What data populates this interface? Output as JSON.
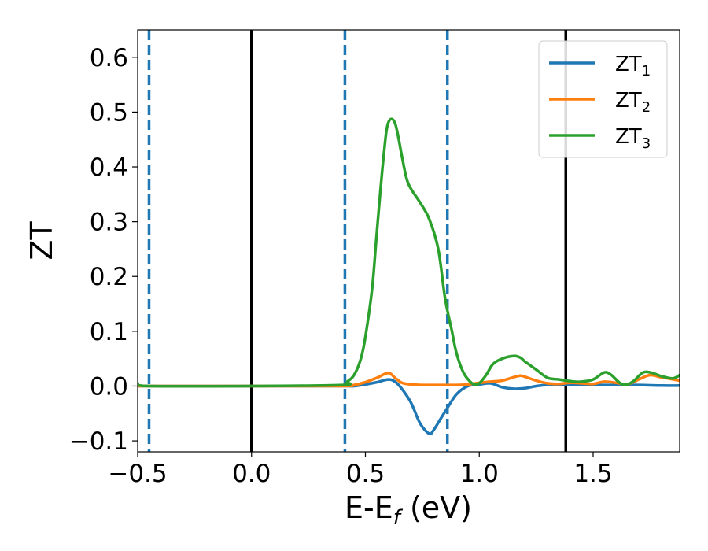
{
  "chart_data": {
    "type": "line",
    "title": "",
    "xlabel": "E-E",
    "xlabel_sub": "f",
    "xlabel_unit": " (eV)",
    "ylabel": "ZT",
    "xlim": [
      -0.5,
      1.88
    ],
    "ylim": [
      -0.12,
      0.65
    ],
    "grid": false,
    "legend_position": "top-right",
    "x_ticks": [
      -0.5,
      0.0,
      0.5,
      1.0,
      1.5
    ],
    "x_tick_labels": [
      "−0.5",
      "0.0",
      "0.5",
      "1.0",
      "1.5"
    ],
    "y_ticks": [
      -0.1,
      0.0,
      0.1,
      0.2,
      0.3,
      0.4,
      0.5,
      0.6
    ],
    "y_tick_labels": [
      "−0.1",
      "0.0",
      "0.1",
      "0.2",
      "0.3",
      "0.4",
      "0.5",
      "0.6"
    ],
    "vertical_lines": [
      {
        "x": -0.45,
        "style": "dashed",
        "color": "#1f77b4"
      },
      {
        "x": 0.0,
        "style": "solid",
        "color": "#000000"
      },
      {
        "x": 0.41,
        "style": "dashed",
        "color": "#1f77b4"
      },
      {
        "x": 0.86,
        "style": "dashed",
        "color": "#1f77b4"
      },
      {
        "x": 1.38,
        "style": "solid",
        "color": "#000000"
      }
    ],
    "series": [
      {
        "name": "ZT",
        "name_sub": "1",
        "color": "#1f77b4",
        "x": [
          -0.5,
          0.0,
          0.4,
          0.45,
          0.5,
          0.55,
          0.6,
          0.63,
          0.66,
          0.7,
          0.74,
          0.78,
          0.8,
          0.83,
          0.86,
          0.9,
          0.95,
          1.0,
          1.05,
          1.1,
          1.15,
          1.2,
          1.25,
          1.3,
          1.4,
          1.5,
          1.6,
          1.7,
          1.8,
          1.88
        ],
        "y": [
          0.0,
          0.0,
          0.0,
          0.0,
          0.003,
          0.007,
          0.012,
          0.008,
          -0.005,
          -0.03,
          -0.068,
          -0.087,
          -0.08,
          -0.06,
          -0.04,
          -0.015,
          0.0,
          0.003,
          0.005,
          -0.002,
          -0.005,
          -0.004,
          0.0,
          0.002,
          0.002,
          0.002,
          0.002,
          0.002,
          0.001,
          0.001
        ]
      },
      {
        "name": "ZT",
        "name_sub": "2",
        "color": "#ff7f0e",
        "x": [
          -0.5,
          0.0,
          0.4,
          0.45,
          0.5,
          0.55,
          0.6,
          0.63,
          0.66,
          0.7,
          0.75,
          0.8,
          0.85,
          0.9,
          0.95,
          1.0,
          1.05,
          1.1,
          1.15,
          1.18,
          1.2,
          1.25,
          1.3,
          1.35,
          1.4,
          1.45,
          1.5,
          1.55,
          1.6,
          1.65,
          1.7,
          1.75,
          1.8,
          1.88
        ],
        "y": [
          0.0,
          0.0,
          0.0,
          0.002,
          0.007,
          0.015,
          0.024,
          0.015,
          0.006,
          0.003,
          0.002,
          0.002,
          0.002,
          0.002,
          0.003,
          0.006,
          0.008,
          0.01,
          0.016,
          0.019,
          0.017,
          0.01,
          0.005,
          0.004,
          0.006,
          0.005,
          0.004,
          0.008,
          0.006,
          0.003,
          0.012,
          0.02,
          0.016,
          0.01
        ]
      },
      {
        "name": "ZT",
        "name_sub": "3",
        "color": "#2ca02c",
        "x": [
          -0.5,
          -0.45,
          0.0,
          0.4,
          0.42,
          0.45,
          0.48,
          0.5,
          0.53,
          0.55,
          0.58,
          0.6,
          0.63,
          0.66,
          0.68,
          0.7,
          0.74,
          0.78,
          0.82,
          0.85,
          0.88,
          0.9,
          0.93,
          0.96,
          0.98,
          1.0,
          1.03,
          1.06,
          1.1,
          1.15,
          1.18,
          1.2,
          1.25,
          1.3,
          1.35,
          1.38,
          1.42,
          1.45,
          1.5,
          1.55,
          1.58,
          1.62,
          1.65,
          1.68,
          1.72,
          1.76,
          1.8,
          1.85,
          1.88
        ],
        "y": [
          0.005,
          0.0,
          0.0,
          0.002,
          0.008,
          0.02,
          0.05,
          0.09,
          0.18,
          0.28,
          0.42,
          0.48,
          0.48,
          0.42,
          0.38,
          0.36,
          0.335,
          0.305,
          0.25,
          0.16,
          0.1,
          0.06,
          0.025,
          0.008,
          0.003,
          0.005,
          0.02,
          0.04,
          0.05,
          0.055,
          0.052,
          0.045,
          0.03,
          0.015,
          0.012,
          0.01,
          0.008,
          0.008,
          0.012,
          0.025,
          0.02,
          0.005,
          0.003,
          0.01,
          0.025,
          0.024,
          0.018,
          0.014,
          0.02
        ]
      }
    ]
  }
}
